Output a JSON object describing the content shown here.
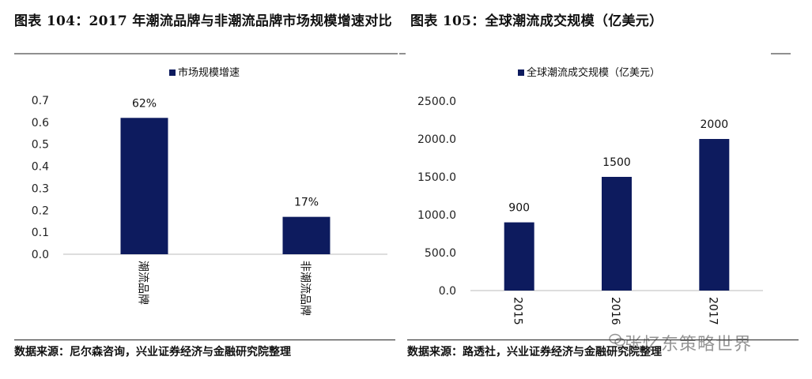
{
  "figures": [
    {
      "title": "图表 104：2017 年潮流品牌与非潮流品牌市场规模增速对比",
      "source": "数据来源：尼尔森咨询，兴业证券经济与金融研究院整理"
    },
    {
      "title": "图表 105：全球潮流成交规模（亿美元）",
      "source": "数据来源：路透社，兴业证券经济与金融研究院整理"
    }
  ],
  "watermark": "张忆东策略世界",
  "chart_data": [
    {
      "type": "bar",
      "categories": [
        "潮流品牌",
        "非潮流品牌"
      ],
      "series": [
        {
          "name": "市场规模增速",
          "values": [
            0.62,
            0.17
          ]
        }
      ],
      "data_labels": [
        "62%",
        "17%"
      ],
      "ylim": [
        0,
        0.7
      ],
      "yticks": [
        "0.0",
        "0.1",
        "0.2",
        "0.3",
        "0.4",
        "0.5",
        "0.6",
        "0.7"
      ],
      "legend": "top",
      "grid": false,
      "bar_color": "#0d1b5e"
    },
    {
      "type": "bar",
      "categories": [
        "2015",
        "2016",
        "2017"
      ],
      "series": [
        {
          "name": "全球潮流成交规模（亿美元）",
          "values": [
            900,
            1500,
            2000
          ]
        }
      ],
      "data_labels": [
        "900",
        "1500",
        "2000"
      ],
      "ylim": [
        0,
        2500
      ],
      "yticks": [
        "0.0",
        "500.0",
        "1000.0",
        "1500.0",
        "2000.0",
        "2500.0"
      ],
      "legend": "top",
      "grid": false,
      "bar_color": "#0d1b5e"
    }
  ]
}
